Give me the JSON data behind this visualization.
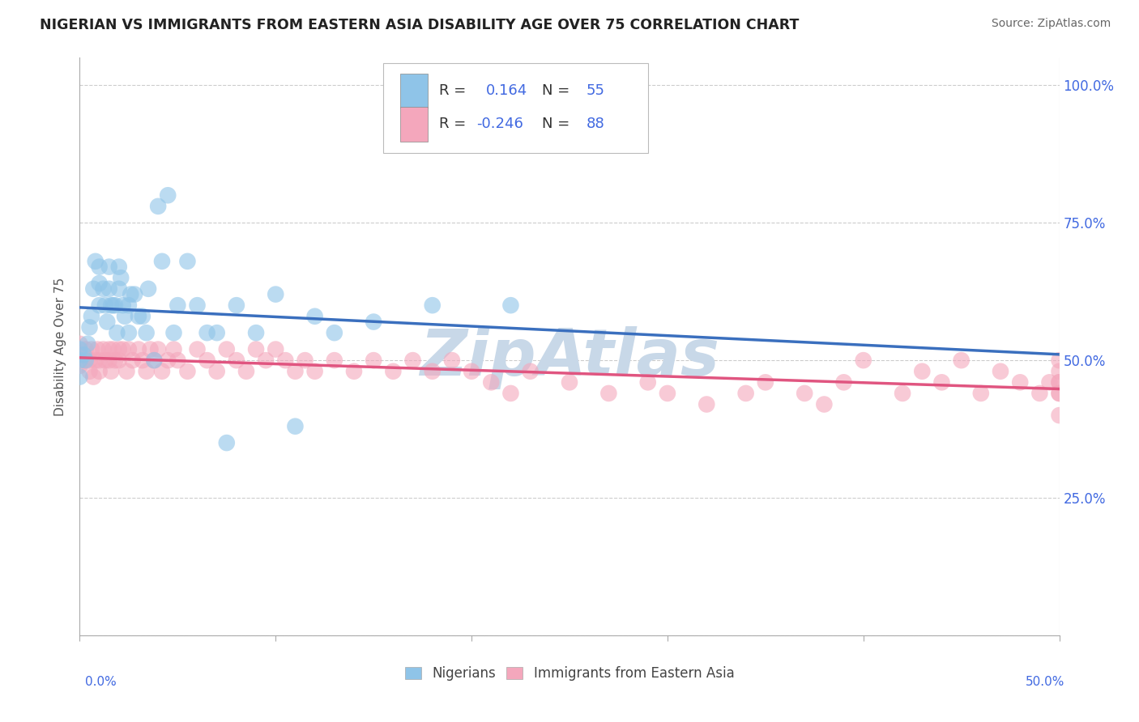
{
  "title": "NIGERIAN VS IMMIGRANTS FROM EASTERN ASIA DISABILITY AGE OVER 75 CORRELATION CHART",
  "source": "Source: ZipAtlas.com",
  "ylabel": "Disability Age Over 75",
  "xmin": 0.0,
  "xmax": 0.5,
  "ymin": 0.0,
  "ymax": 1.05,
  "y_tick_vals": [
    0.0,
    0.25,
    0.5,
    0.75,
    1.0
  ],
  "y_tick_labels": [
    "",
    "25.0%",
    "50.0%",
    "75.0%",
    "100.0%"
  ],
  "blue_color": "#8fc4e8",
  "pink_color": "#f4a7bc",
  "blue_line_color": "#3a6fbe",
  "pink_line_color": "#e05580",
  "dashed_line_color": "#aaaaaa",
  "title_color": "#222222",
  "source_color": "#666666",
  "axis_tick_color": "#4169e1",
  "grid_color": "#cccccc",
  "watermark_color": "#c8d8e8",
  "nigerians_x": [
    0.0,
    0.0,
    0.0,
    0.002,
    0.003,
    0.004,
    0.005,
    0.006,
    0.007,
    0.008,
    0.01,
    0.01,
    0.01,
    0.012,
    0.013,
    0.014,
    0.015,
    0.015,
    0.016,
    0.017,
    0.018,
    0.019,
    0.02,
    0.02,
    0.021,
    0.022,
    0.023,
    0.025,
    0.025,
    0.026,
    0.028,
    0.03,
    0.032,
    0.034,
    0.035,
    0.038,
    0.04,
    0.042,
    0.045,
    0.048,
    0.05,
    0.055,
    0.06,
    0.065,
    0.07,
    0.075,
    0.08,
    0.09,
    0.1,
    0.11,
    0.12,
    0.13,
    0.15,
    0.18,
    0.22
  ],
  "nigerians_y": [
    0.5,
    0.52,
    0.47,
    0.51,
    0.5,
    0.53,
    0.56,
    0.58,
    0.63,
    0.68,
    0.6,
    0.64,
    0.67,
    0.63,
    0.6,
    0.57,
    0.63,
    0.67,
    0.6,
    0.6,
    0.6,
    0.55,
    0.63,
    0.67,
    0.65,
    0.6,
    0.58,
    0.6,
    0.55,
    0.62,
    0.62,
    0.58,
    0.58,
    0.55,
    0.63,
    0.5,
    0.78,
    0.68,
    0.8,
    0.55,
    0.6,
    0.68,
    0.6,
    0.55,
    0.55,
    0.35,
    0.6,
    0.55,
    0.62,
    0.38,
    0.58,
    0.55,
    0.57,
    0.6,
    0.6
  ],
  "eastern_asia_x": [
    0.0,
    0.0,
    0.0,
    0.002,
    0.003,
    0.005,
    0.005,
    0.006,
    0.007,
    0.008,
    0.009,
    0.01,
    0.01,
    0.012,
    0.013,
    0.015,
    0.015,
    0.016,
    0.017,
    0.018,
    0.02,
    0.02,
    0.022,
    0.024,
    0.025,
    0.027,
    0.03,
    0.032,
    0.034,
    0.036,
    0.038,
    0.04,
    0.042,
    0.045,
    0.048,
    0.05,
    0.055,
    0.06,
    0.065,
    0.07,
    0.075,
    0.08,
    0.085,
    0.09,
    0.095,
    0.1,
    0.105,
    0.11,
    0.115,
    0.12,
    0.13,
    0.14,
    0.15,
    0.16,
    0.17,
    0.18,
    0.19,
    0.2,
    0.21,
    0.22,
    0.23,
    0.25,
    0.27,
    0.29,
    0.3,
    0.32,
    0.34,
    0.35,
    0.37,
    0.38,
    0.39,
    0.4,
    0.42,
    0.43,
    0.44,
    0.45,
    0.46,
    0.47,
    0.48,
    0.49,
    0.495,
    0.5,
    0.5,
    0.5,
    0.5,
    0.5,
    0.5,
    0.5
  ],
  "eastern_asia_y": [
    0.51,
    0.49,
    0.53,
    0.5,
    0.52,
    0.5,
    0.48,
    0.52,
    0.47,
    0.5,
    0.52,
    0.5,
    0.48,
    0.52,
    0.5,
    0.52,
    0.5,
    0.48,
    0.52,
    0.5,
    0.52,
    0.5,
    0.52,
    0.48,
    0.52,
    0.5,
    0.52,
    0.5,
    0.48,
    0.52,
    0.5,
    0.52,
    0.48,
    0.5,
    0.52,
    0.5,
    0.48,
    0.52,
    0.5,
    0.48,
    0.52,
    0.5,
    0.48,
    0.52,
    0.5,
    0.52,
    0.5,
    0.48,
    0.5,
    0.48,
    0.5,
    0.48,
    0.5,
    0.48,
    0.5,
    0.48,
    0.5,
    0.48,
    0.46,
    0.44,
    0.48,
    0.46,
    0.44,
    0.46,
    0.44,
    0.42,
    0.44,
    0.46,
    0.44,
    0.42,
    0.46,
    0.5,
    0.44,
    0.48,
    0.46,
    0.5,
    0.44,
    0.48,
    0.46,
    0.44,
    0.46,
    0.44,
    0.48,
    0.46,
    0.5,
    0.44,
    0.46,
    0.4
  ]
}
